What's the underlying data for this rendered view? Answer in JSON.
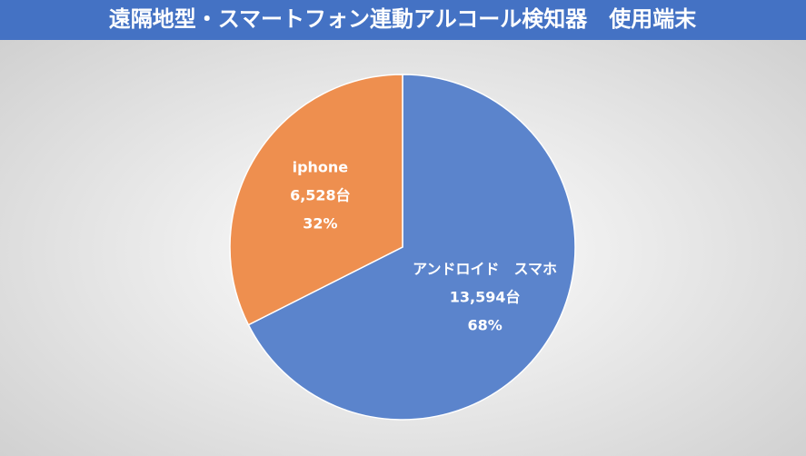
{
  "chart_data": {
    "type": "pie",
    "title": "遠隔地型・スマートフォン連動アルコール検知器　使用端末",
    "categories": [
      "アンドロイド　スマホ",
      "iphone"
    ],
    "values": [
      13594,
      6528
    ],
    "value_labels": [
      "13,594台",
      "6,528台"
    ],
    "percents": [
      68,
      32
    ],
    "percent_labels": [
      "68%",
      "32%"
    ],
    "colors": [
      "#5b84cc",
      "#ee8f4f"
    ]
  }
}
